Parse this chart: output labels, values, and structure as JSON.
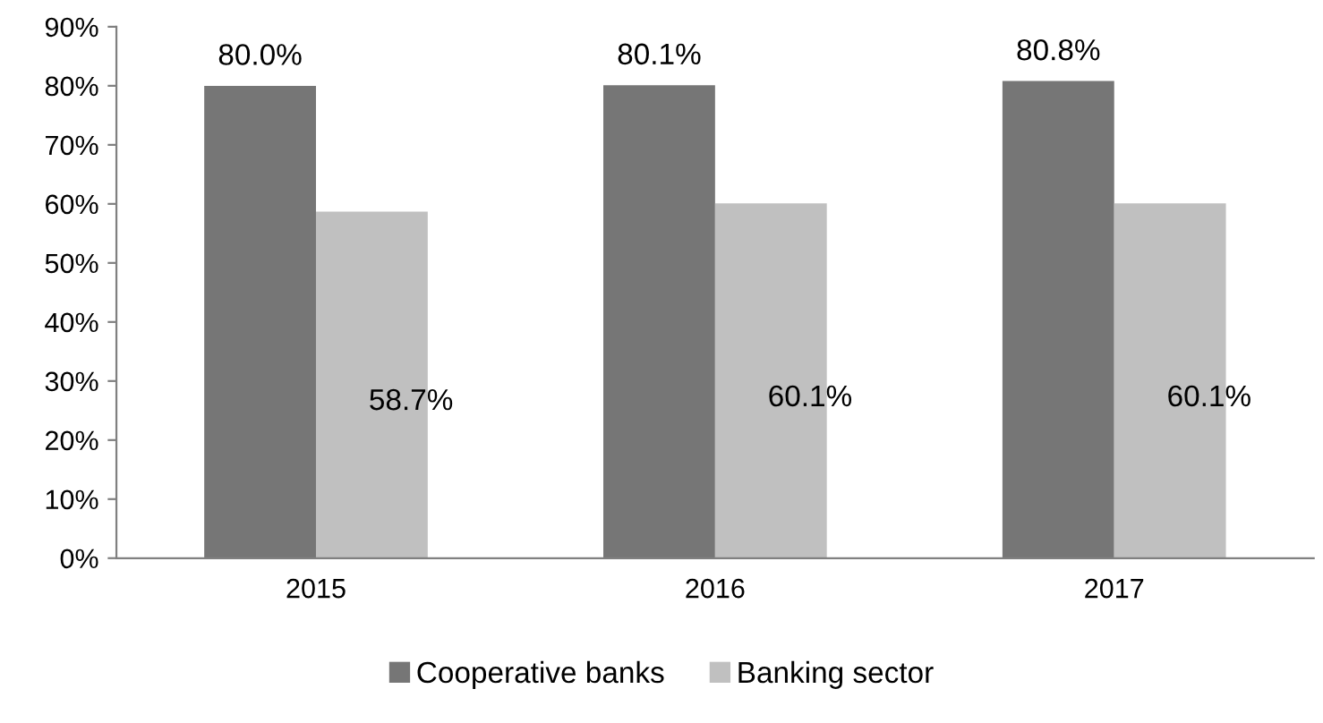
{
  "chart_data": {
    "type": "bar",
    "categories": [
      "2015",
      "2016",
      "2017"
    ],
    "series": [
      {
        "name": "Cooperative banks",
        "color": "#767676",
        "values": [
          80.0,
          80.1,
          80.8
        ],
        "value_labels": [
          "80.0%",
          "80.1%",
          "80.8%"
        ]
      },
      {
        "name": "Banking sector",
        "color": "#c0c0c0",
        "values": [
          58.7,
          60.1,
          60.1
        ],
        "value_labels": [
          "58.7%",
          "60.1%",
          "60.1%"
        ]
      }
    ],
    "ylim": [
      0,
      90
    ],
    "yticks": [
      {
        "value": 0,
        "label": "0%"
      },
      {
        "value": 10,
        "label": "10%"
      },
      {
        "value": 20,
        "label": "20%"
      },
      {
        "value": 30,
        "label": "30%"
      },
      {
        "value": 40,
        "label": "40%"
      },
      {
        "value": 50,
        "label": "50%"
      },
      {
        "value": 60,
        "label": "60%"
      },
      {
        "value": 70,
        "label": "70%"
      },
      {
        "value": 80,
        "label": "80%"
      },
      {
        "value": 90,
        "label": "90%"
      }
    ],
    "grid": false,
    "legend": "bottom"
  }
}
